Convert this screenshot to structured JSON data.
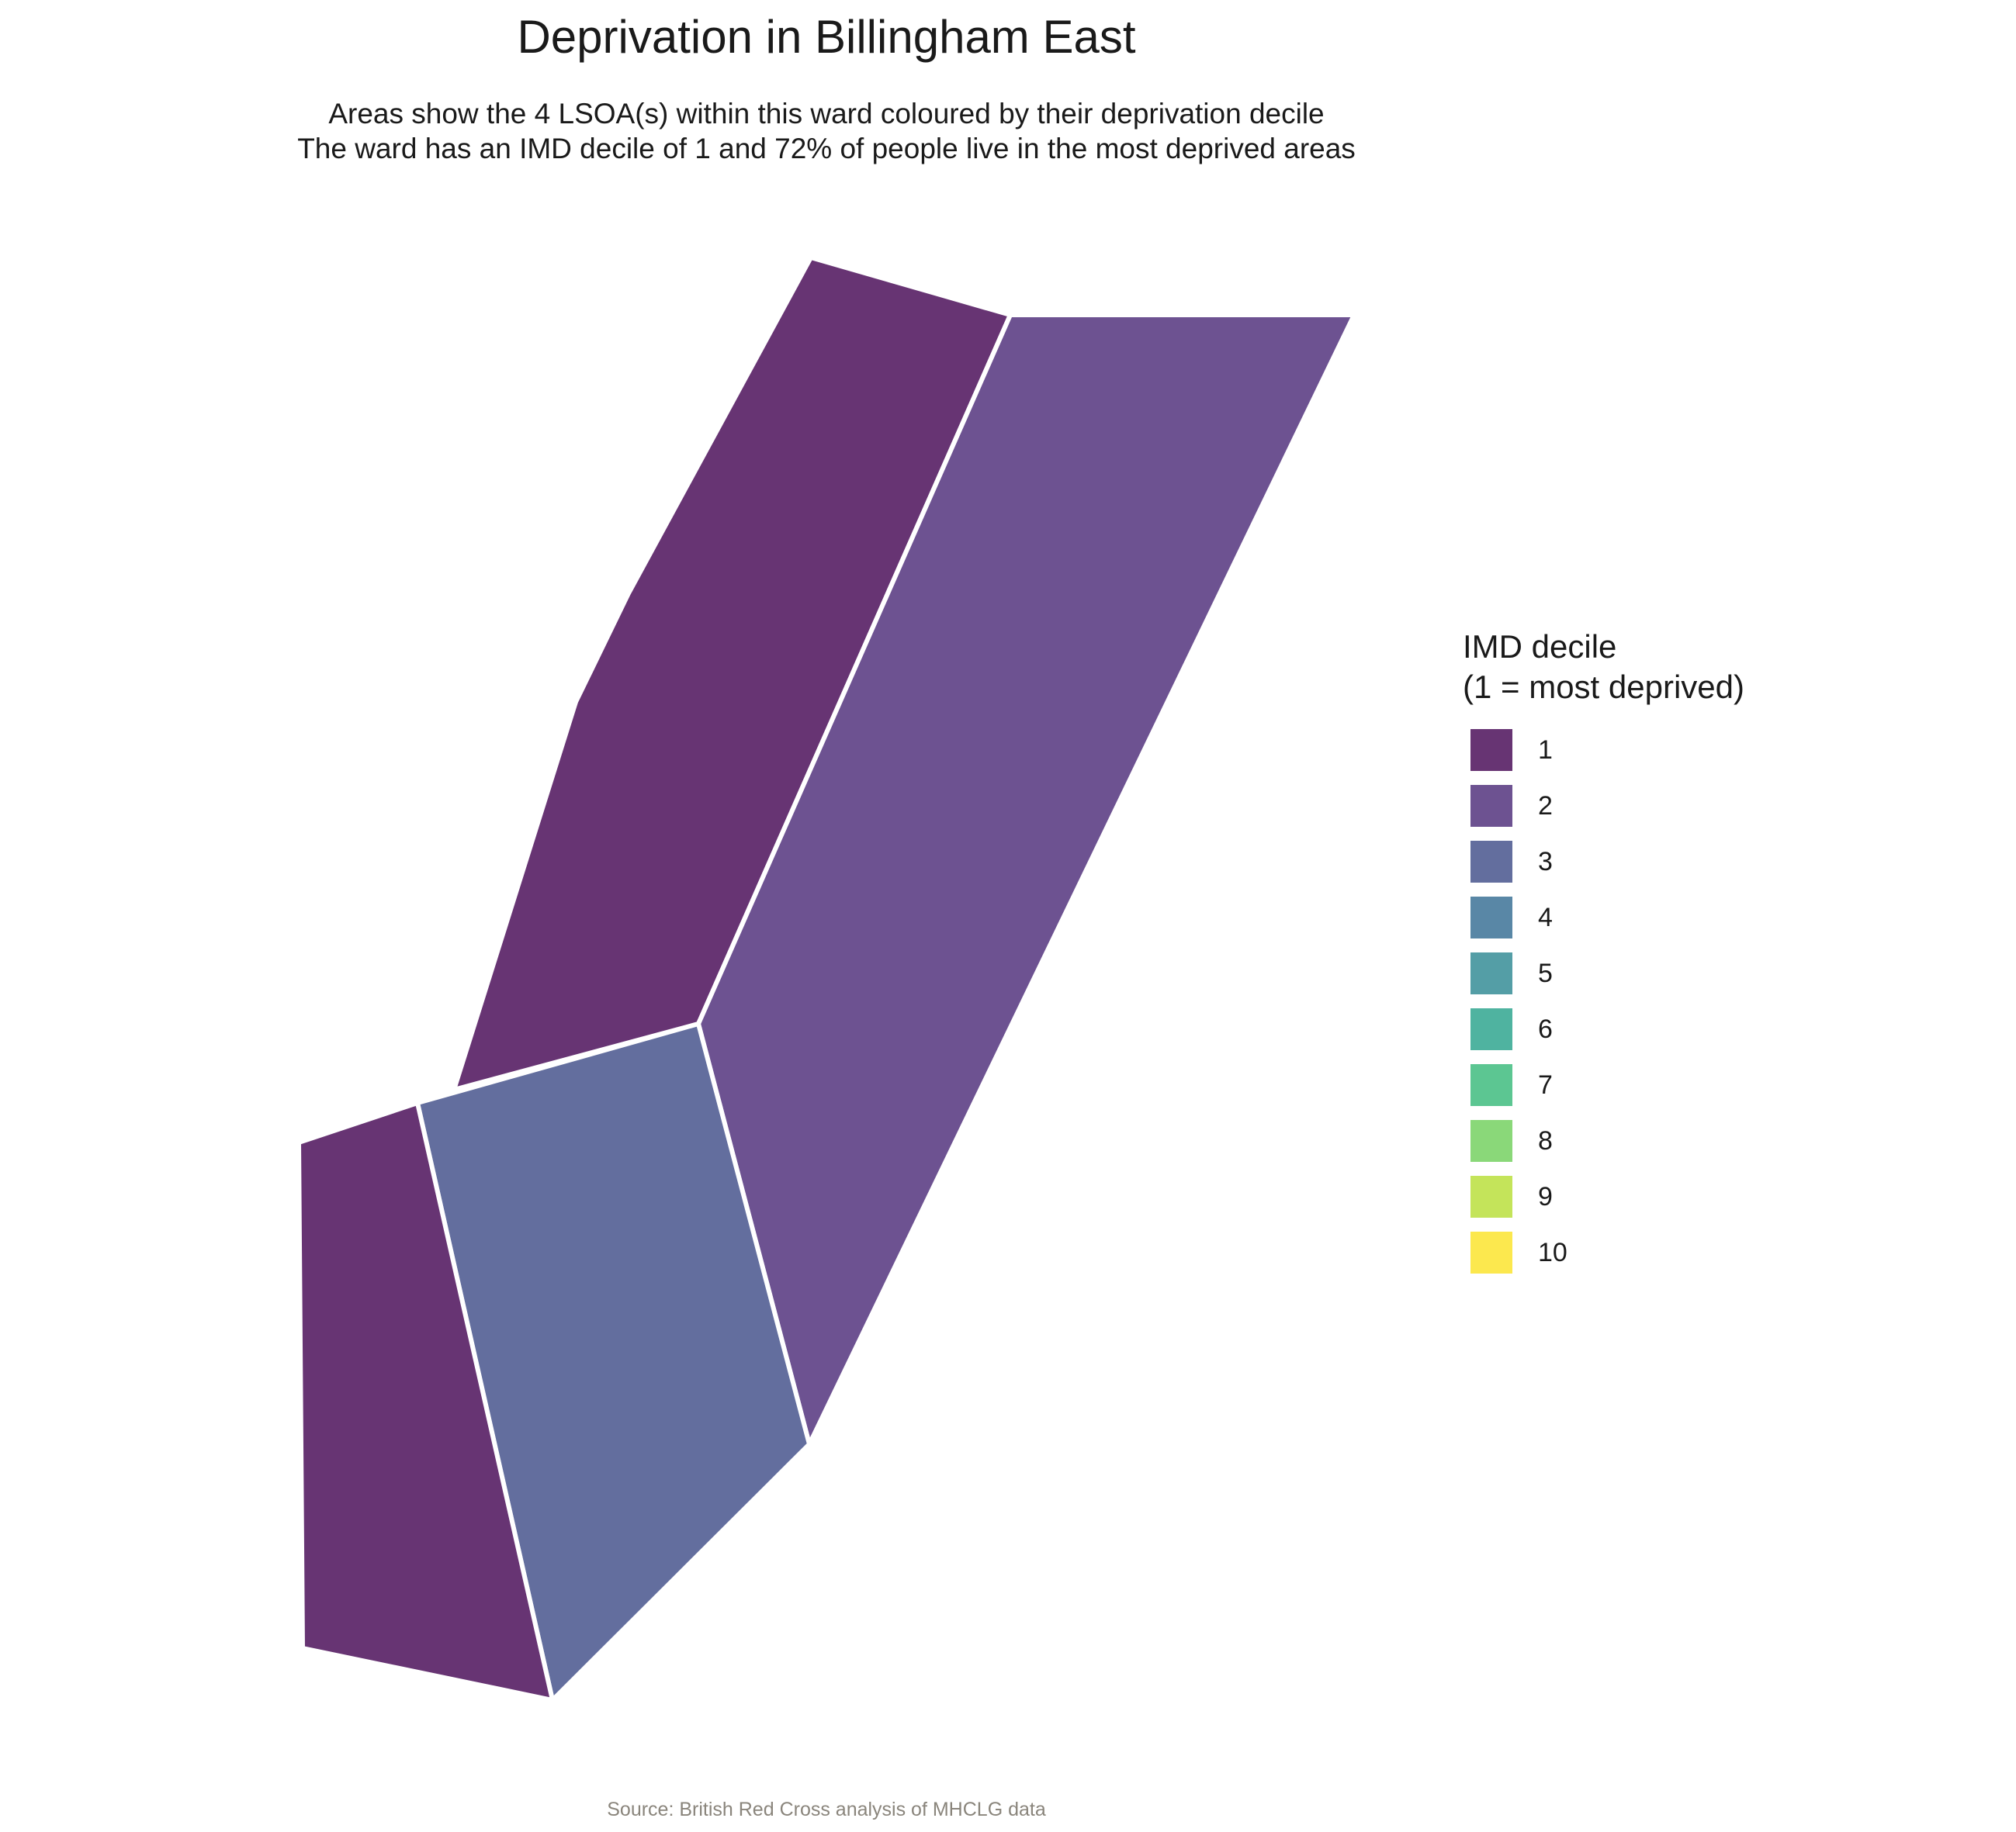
{
  "title": "Deprivation in Billingham East",
  "subtitle_line1": "Areas show the 4 LSOA(s) within this ward coloured by their deprivation decile",
  "subtitle_line2": "The ward has an IMD decile of 1 and 72% of people live in the most deprived areas",
  "legend": {
    "title_line1": "IMD decile",
    "title_line2": "(1 = most deprived)",
    "items": [
      {
        "label": "1",
        "color": "#673473"
      },
      {
        "label": "2",
        "color": "#6d5291"
      },
      {
        "label": "3",
        "color": "#636e9e"
      },
      {
        "label": "4",
        "color": "#5987a6"
      },
      {
        "label": "5",
        "color": "#549ea6"
      },
      {
        "label": "6",
        "color": "#4fb3a0"
      },
      {
        "label": "7",
        "color": "#5cc692"
      },
      {
        "label": "8",
        "color": "#8ad879"
      },
      {
        "label": "9",
        "color": "#c4e45a"
      },
      {
        "label": "10",
        "color": "#fce84e"
      }
    ]
  },
  "areas": [
    {
      "decile": 1,
      "color": "#673473"
    },
    {
      "decile": 2,
      "color": "#6d5291"
    },
    {
      "decile": 3,
      "color": "#636e9e"
    },
    {
      "decile": 1,
      "color": "#673473"
    }
  ],
  "caption": "Source: British Red Cross analysis of MHCLG data"
}
